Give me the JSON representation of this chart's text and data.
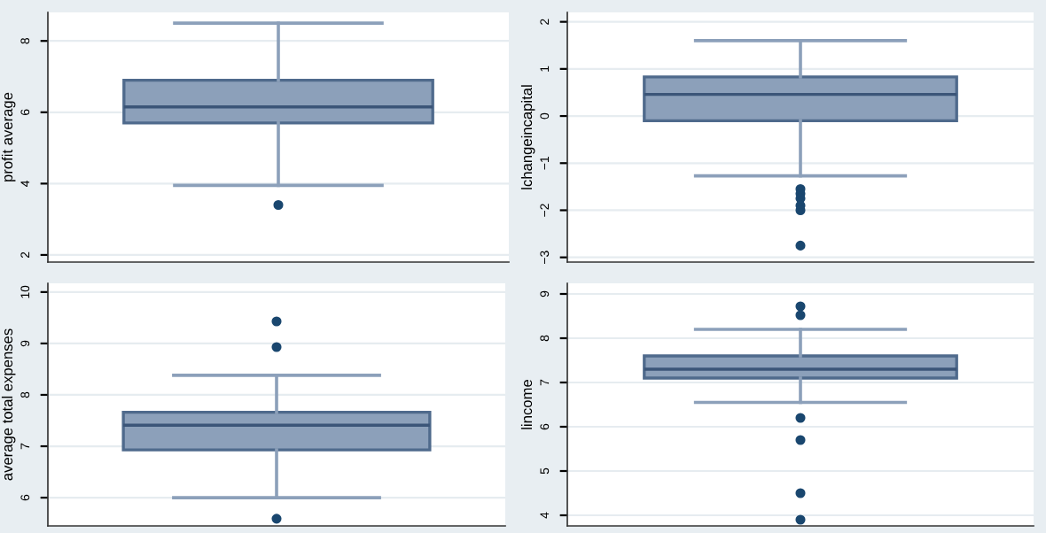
{
  "chart_data": [
    {
      "type": "box",
      "ylabel": "profit average",
      "categories": [
        null
      ],
      "ylim": [
        1.8,
        8.8
      ],
      "yticks": [
        2,
        4,
        6,
        8
      ],
      "grid": "y",
      "tick_labels": "y",
      "color": "#8ca0ba",
      "boxes": [
        {
          "low": 3.95,
          "q1": 5.7,
          "median": 6.15,
          "q3": 6.9,
          "high": 8.5,
          "outliers": [
            3.4
          ]
        }
      ]
    },
    {
      "type": "box",
      "ylabel": "lchangeincapital",
      "categories": [
        null
      ],
      "ylim": [
        -3.1,
        2.2
      ],
      "yticks": [
        {
          "value": -3,
          "label": "−3"
        },
        {
          "value": -2,
          "label": "−2"
        },
        {
          "value": -1,
          "label": "−1"
        },
        0,
        1,
        2
      ],
      "grid": "y",
      "tick_labels": "y",
      "color": "#8ca0ba",
      "boxes": [
        {
          "low": -1.27,
          "q1": -0.1,
          "median": 0.46,
          "q3": 0.83,
          "high": 1.6,
          "outliers": [
            -1.55,
            -1.65,
            -1.75,
            -1.9,
            -2.0,
            -2.75
          ]
        }
      ]
    },
    {
      "type": "box",
      "ylabel": "average total expenses",
      "categories": [
        null
      ],
      "ylim": [
        5.45,
        10.17
      ],
      "yticks": [
        6,
        7,
        8,
        9,
        10
      ],
      "grid": "y",
      "tick_labels": "y",
      "color": "#8ca0ba",
      "boxes": [
        {
          "low": 6.0,
          "q1": 6.93,
          "median": 7.41,
          "q3": 7.66,
          "high": 8.38,
          "outliers": [
            9.43,
            8.93,
            5.59
          ]
        }
      ]
    },
    {
      "type": "box",
      "ylabel": "lincome",
      "categories": [
        null
      ],
      "ylim": [
        3.76,
        9.24
      ],
      "yticks": [
        4,
        5,
        6,
        7,
        8,
        9
      ],
      "grid": "y",
      "tick_labels": "y",
      "color": "#8ca0ba",
      "boxes": [
        {
          "low": 6.55,
          "q1": 7.1,
          "median": 7.3,
          "q3": 7.6,
          "high": 8.2,
          "outliers": [
            8.72,
            8.52,
            6.2,
            5.7,
            4.5,
            3.9
          ]
        }
      ]
    }
  ]
}
